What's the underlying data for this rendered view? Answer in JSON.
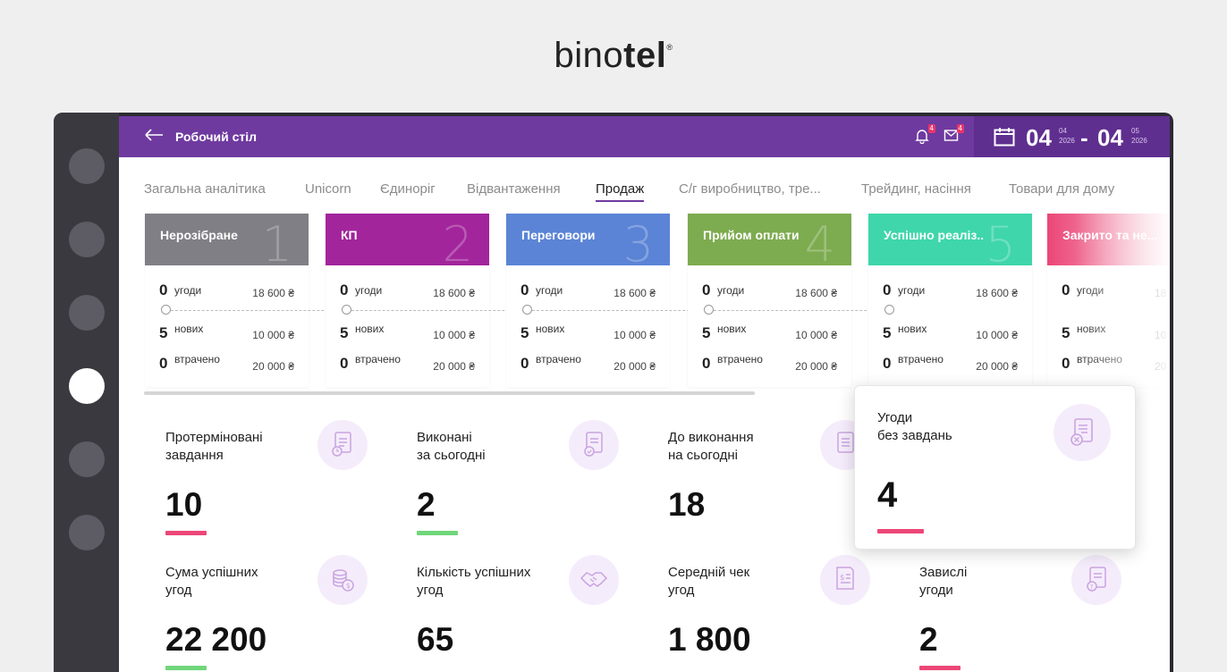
{
  "brand": {
    "prefix": "bino",
    "suffix": "tel",
    "mark": "®"
  },
  "topbar": {
    "title": "Робочий стіл",
    "notifications_count": "4",
    "messages_count": "4",
    "date_from": {
      "day": "04",
      "month": "04",
      "year": "2026"
    },
    "date_to": {
      "day": "04",
      "month": "05",
      "year": "2026"
    },
    "date_separator": "-"
  },
  "tabs": [
    {
      "label": "Загальна аналітика"
    },
    {
      "label": "Unicorn"
    },
    {
      "label": "Єдиноріг"
    },
    {
      "label": "Відвантаження"
    },
    {
      "label": "Продаж"
    },
    {
      "label": "С/г виробництво, тре..."
    },
    {
      "label": "Трейдинг, насіння"
    },
    {
      "label": "Товари для дому"
    }
  ],
  "stages": [
    {
      "name": "Нерозібране",
      "num": "1",
      "color": "#7f7f85",
      "deals": "0",
      "deals_label": "угоди",
      "deals_sum": "18 600 ₴",
      "new": "5",
      "new_label": "нових",
      "new_sum": "10 000 ₴",
      "lost": "0",
      "lost_label": "втрачено",
      "lost_sum": "20 000 ₴"
    },
    {
      "name": "КП",
      "num": "2",
      "color": "#a2259c",
      "deals": "0",
      "deals_label": "угоди",
      "deals_sum": "18 600 ₴",
      "new": "5",
      "new_label": "нових",
      "new_sum": "10 000 ₴",
      "lost": "0",
      "lost_label": "втрачено",
      "lost_sum": "20 000 ₴"
    },
    {
      "name": "Переговори",
      "num": "3",
      "color": "#5b84d6",
      "deals": "0",
      "deals_label": "угоди",
      "deals_sum": "18 600 ₴",
      "new": "5",
      "new_label": "нових",
      "new_sum": "10 000 ₴",
      "lost": "0",
      "lost_label": "втрачено",
      "lost_sum": "20 000 ₴"
    },
    {
      "name": "Прийом оплати",
      "num": "4",
      "color": "#7dab4f",
      "deals": "0",
      "deals_label": "угоди",
      "deals_sum": "18 600 ₴",
      "new": "5",
      "new_label": "нових",
      "new_sum": "10 000 ₴",
      "lost": "0",
      "lost_label": "втрачено",
      "lost_sum": "20 000 ₴"
    },
    {
      "name": "Успішно реаліз..",
      "num": "5",
      "color": "#3ed6aa",
      "deals": "0",
      "deals_label": "угоди",
      "deals_sum": "18 600 ₴",
      "new": "5",
      "new_label": "нових",
      "new_sum": "10 000 ₴",
      "lost": "0",
      "lost_label": "втрачено",
      "lost_sum": "20 000 ₴"
    },
    {
      "name": "Закрито та не...",
      "num": "",
      "color": "#ec4677",
      "deals": "0",
      "deals_label": "угоди",
      "deals_sum": "18",
      "new": "5",
      "new_label": "нових",
      "new_sum": "10",
      "lost": "0",
      "lost_label": "втрачено",
      "lost_sum": "20"
    }
  ],
  "kpis": [
    {
      "label": "Протерміновані\nзавдання",
      "value": "10",
      "bar_color": "#ec4677",
      "icon": "overdue-tasks-icon"
    },
    {
      "label": "Виконані\nза сьогодні",
      "value": "2",
      "bar_color": "#6fd67a",
      "icon": "done-tasks-icon"
    },
    {
      "label": "До виконання\nна сьогодні",
      "value": "18",
      "bar_color": "",
      "icon": "todo-tasks-icon"
    },
    {
      "label": "Сума успішних\nугод",
      "value": "22 200",
      "bar_color": "#6fd67a",
      "icon": "coins-icon"
    },
    {
      "label": "Кількість успішних\nугод",
      "value": "65",
      "bar_color": "",
      "icon": "handshake-icon"
    },
    {
      "label": "Середній чек\nугод",
      "value": "1 800",
      "bar_color": "",
      "icon": "receipt-icon"
    },
    {
      "label": "Завислі\nугоди",
      "value": "2",
      "bar_color": "#ec4677",
      "icon": "stuck-deals-icon"
    }
  ],
  "popover": {
    "label": "Угоди\nбез завдань",
    "value": "4",
    "bar_color": "#ec4677",
    "icon": "deal-no-tasks-icon"
  }
}
